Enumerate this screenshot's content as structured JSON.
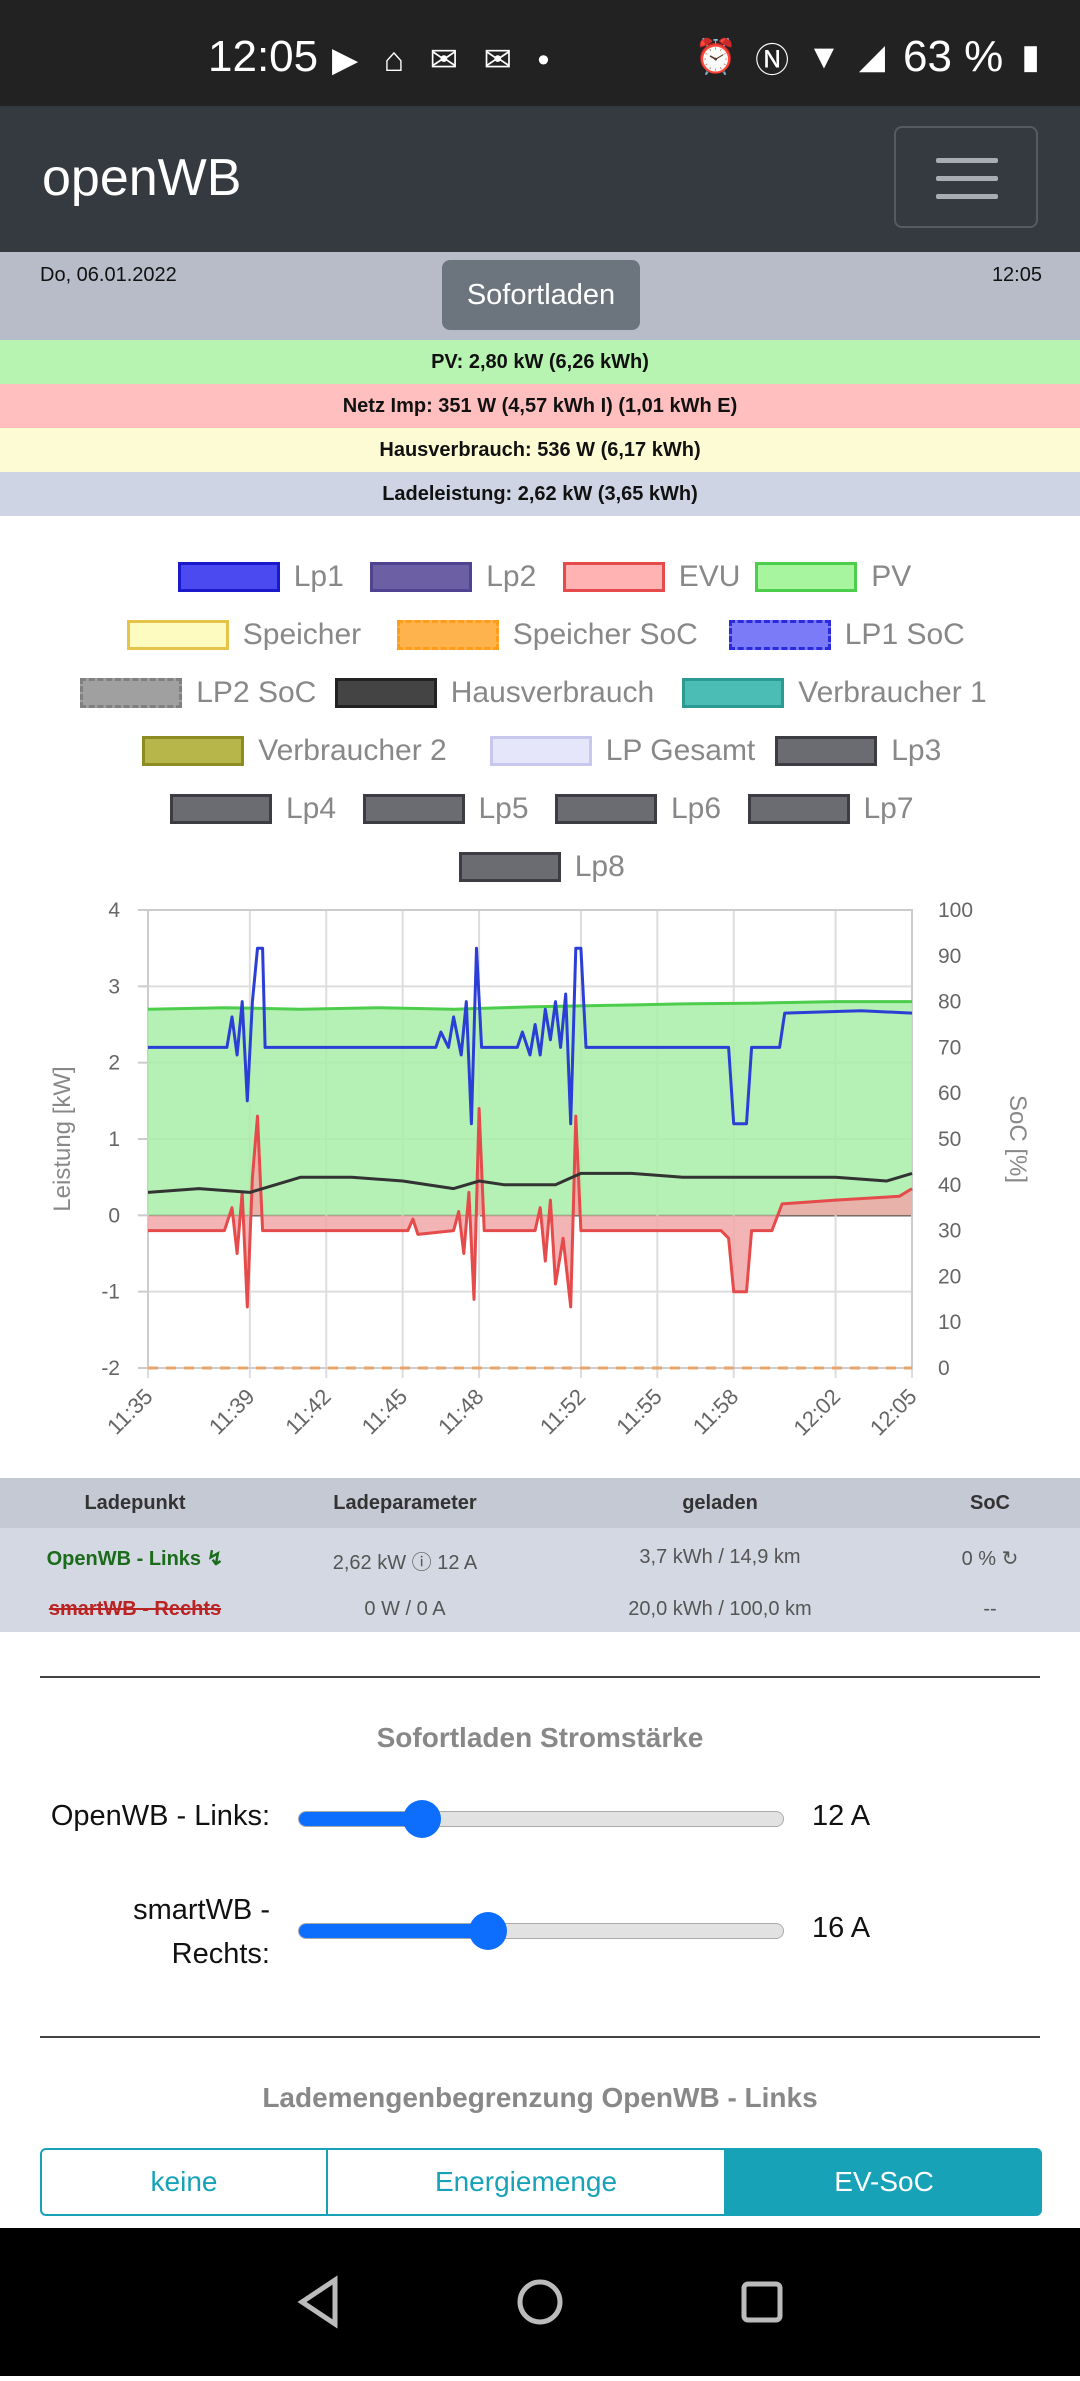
{
  "status_bar": {
    "time": "12:05",
    "left_icons": "▶ ⌂ ✉ ✉ •",
    "battery": "63 %"
  },
  "app": {
    "brand": "openWB"
  },
  "info": {
    "date": "Do, 06.01.2022",
    "mode_button": "Sofortladen",
    "time": "12:05"
  },
  "summary": {
    "pv": "PV: 2,80 kW (6,26 kWh)",
    "grid": "Netz Imp: 351 W (4,57 kWh I) (1,01 kWh E)",
    "house": "Hausverbrauch: 536 W (6,17 kWh)",
    "charge": "Ladeleistung: 2,62 kW (3,65 kWh)"
  },
  "colors": {
    "pv_row": "#b7f4b1",
    "grid_row": "#ffbfbf",
    "house_row": "#fdfbd3",
    "charge_row": "#cfd4e4",
    "accent": "#0d6efd",
    "teal": "#17a2b8"
  },
  "legend": [
    {
      "label": "Lp1",
      "fill": "#4a4af0",
      "border": "#1a1acc",
      "dashed": false
    },
    {
      "label": "Lp2",
      "fill": "#6d5fa3",
      "border": "#4f4392",
      "dashed": false
    },
    {
      "label": "EVU",
      "fill": "#ffb3b3",
      "border": "#e54b4b",
      "dashed": false
    },
    {
      "label": "PV",
      "fill": "#a8f5a0",
      "border": "#4ccd4c",
      "dashed": false
    },
    {
      "label": "Speicher",
      "fill": "#fdfbc0",
      "border": "#e6c44a",
      "dashed": false
    },
    {
      "label": "Speicher SoC",
      "fill": "#ffb34d",
      "border": "#ff9c1a",
      "dashed": true
    },
    {
      "label": "LP1 SoC",
      "fill": "#7b7bf7",
      "border": "#2b2bdd",
      "dashed": true
    },
    {
      "label": "LP2 SoC",
      "fill": "#a0a0a0",
      "border": "#808080",
      "dashed": true
    },
    {
      "label": "Hausverbrauch",
      "fill": "#444444",
      "border": "#222222",
      "dashed": false
    },
    {
      "label": "Verbraucher 1",
      "fill": "#4bbdb5",
      "border": "#2a9a93",
      "dashed": false
    },
    {
      "label": "Verbraucher 2",
      "fill": "#b6b64a",
      "border": "#8c8c22",
      "dashed": false
    },
    {
      "label": "LP Gesamt",
      "fill": "#e6e6fb",
      "border": "#c8c8ef",
      "dashed": false
    },
    {
      "label": "Lp3",
      "fill": "#6b6b72",
      "border": "#3c3c42",
      "dashed": false
    },
    {
      "label": "Lp4",
      "fill": "#6b6b72",
      "border": "#3c3c42",
      "dashed": false
    },
    {
      "label": "Lp5",
      "fill": "#6b6b72",
      "border": "#3c3c42",
      "dashed": false
    },
    {
      "label": "Lp6",
      "fill": "#6b6b72",
      "border": "#3c3c42",
      "dashed": false
    },
    {
      "label": "Lp7",
      "fill": "#6b6b72",
      "border": "#3c3c42",
      "dashed": false
    },
    {
      "label": "Lp8",
      "fill": "#6b6b72",
      "border": "#3c3c42",
      "dashed": false
    }
  ],
  "chart_data": {
    "type": "line",
    "ylabel": "Leistung [kW]",
    "y2label": "SoC [%]",
    "ylim": [
      -2,
      4
    ],
    "y2lim": [
      0,
      100
    ],
    "yticks": [
      -2,
      -1,
      0,
      1,
      2,
      3,
      4
    ],
    "y2ticks": [
      0,
      10,
      20,
      30,
      40,
      50,
      60,
      70,
      80,
      90,
      100
    ],
    "xticks": [
      "11:35",
      "11:39",
      "11:42",
      "11:45",
      "11:48",
      "11:52",
      "11:55",
      "11:58",
      "12:02",
      "12:05"
    ],
    "x_minutes_after_1135": [
      0,
      4,
      7,
      10,
      13,
      17,
      20,
      23,
      27,
      30
    ],
    "series": [
      {
        "name": "PV",
        "color": "#4ccd4c",
        "fill": "#a8eea8",
        "points": [
          [
            0,
            2.7
          ],
          [
            3,
            2.72
          ],
          [
            6,
            2.7
          ],
          [
            9,
            2.72
          ],
          [
            12,
            2.7
          ],
          [
            15,
            2.73
          ],
          [
            18,
            2.75
          ],
          [
            21,
            2.77
          ],
          [
            24,
            2.78
          ],
          [
            27,
            2.8
          ],
          [
            30,
            2.8
          ]
        ]
      },
      {
        "name": "Lp1",
        "color": "#2b3fd6",
        "points": [
          [
            0,
            2.2
          ],
          [
            3.1,
            2.2
          ],
          [
            3.3,
            2.6
          ],
          [
            3.5,
            2.1
          ],
          [
            3.7,
            2.8
          ],
          [
            3.9,
            1.5
          ],
          [
            4.1,
            2.8
          ],
          [
            4.3,
            3.5
          ],
          [
            4.5,
            3.5
          ],
          [
            4.6,
            2.2
          ],
          [
            7,
            2.2
          ],
          [
            10.5,
            2.2
          ],
          [
            11.3,
            2.2
          ],
          [
            11.5,
            2.4
          ],
          [
            11.8,
            2.2
          ],
          [
            12,
            2.6
          ],
          [
            12.3,
            2.1
          ],
          [
            12.5,
            2.8
          ],
          [
            12.7,
            1.2
          ],
          [
            12.9,
            3.5
          ],
          [
            13.1,
            2.2
          ],
          [
            14.5,
            2.2
          ],
          [
            14.7,
            2.4
          ],
          [
            15,
            2.1
          ],
          [
            15.2,
            2.5
          ],
          [
            15.4,
            2.1
          ],
          [
            15.6,
            2.7
          ],
          [
            15.8,
            2.3
          ],
          [
            16,
            2.8
          ],
          [
            16.2,
            2.2
          ],
          [
            16.4,
            2.9
          ],
          [
            16.6,
            1.2
          ],
          [
            16.8,
            3.5
          ],
          [
            17,
            3.5
          ],
          [
            17.2,
            2.2
          ],
          [
            22.8,
            2.2
          ],
          [
            23,
            1.2
          ],
          [
            23.5,
            1.2
          ],
          [
            23.7,
            2.2
          ],
          [
            24.8,
            2.2
          ],
          [
            25,
            2.65
          ],
          [
            27,
            2.67
          ],
          [
            28,
            2.68
          ],
          [
            30,
            2.65
          ]
        ]
      },
      {
        "name": "EVU",
        "color": "#e54b4b",
        "fill": "#f0a7a7",
        "points": [
          [
            0,
            -0.2
          ],
          [
            3,
            -0.2
          ],
          [
            3.3,
            0.1
          ],
          [
            3.5,
            -0.5
          ],
          [
            3.7,
            0.3
          ],
          [
            3.9,
            -1.2
          ],
          [
            4.1,
            0.5
          ],
          [
            4.3,
            1.3
          ],
          [
            4.5,
            -0.2
          ],
          [
            10.2,
            -0.2
          ],
          [
            10.4,
            -0.05
          ],
          [
            10.6,
            -0.25
          ],
          [
            12,
            -0.2
          ],
          [
            12.2,
            0.05
          ],
          [
            12.4,
            -0.5
          ],
          [
            12.6,
            0.3
          ],
          [
            12.8,
            -1.1
          ],
          [
            13,
            1.4
          ],
          [
            13.2,
            -0.2
          ],
          [
            15.2,
            -0.2
          ],
          [
            15.4,
            0.1
          ],
          [
            15.6,
            -0.6
          ],
          [
            15.8,
            0.2
          ],
          [
            16,
            -0.9
          ],
          [
            16.3,
            -0.3
          ],
          [
            16.6,
            -1.2
          ],
          [
            16.8,
            1.3
          ],
          [
            17,
            -0.2
          ],
          [
            22.5,
            -0.2
          ],
          [
            22.8,
            -0.3
          ],
          [
            23,
            -1.0
          ],
          [
            23.5,
            -1.0
          ],
          [
            23.7,
            -0.2
          ],
          [
            24.5,
            -0.2
          ],
          [
            24.9,
            0.15
          ],
          [
            27,
            0.2
          ],
          [
            29.5,
            0.25
          ],
          [
            30,
            0.35
          ]
        ]
      },
      {
        "name": "Hausverbrauch",
        "color": "#333333",
        "points": [
          [
            0,
            0.3
          ],
          [
            2,
            0.35
          ],
          [
            4,
            0.3
          ],
          [
            6,
            0.5
          ],
          [
            8,
            0.5
          ],
          [
            10,
            0.45
          ],
          [
            12,
            0.35
          ],
          [
            13,
            0.45
          ],
          [
            14,
            0.4
          ],
          [
            16,
            0.4
          ],
          [
            17,
            0.55
          ],
          [
            19,
            0.55
          ],
          [
            21,
            0.5
          ],
          [
            23,
            0.5
          ],
          [
            25,
            0.5
          ],
          [
            27,
            0.5
          ],
          [
            29,
            0.45
          ],
          [
            30,
            0.55
          ]
        ]
      }
    ]
  },
  "table": {
    "headers": [
      "Ladepunkt",
      "Ladeparameter",
      "geladen",
      "SoC"
    ],
    "rows": [
      {
        "name": "OpenWB - Links",
        "symbol": "↯",
        "params": "2,62 kW ⓘ 12 A",
        "charged": "3,7 kWh / 14,9 km",
        "soc": "0 %",
        "soc_icon": "↻",
        "name_color": "#1a6b1a",
        "struck": false
      },
      {
        "name": "smartWB - Rechts",
        "symbol": "",
        "params": "0 W / 0 A",
        "charged": "20,0 kWh / 100,0 km",
        "soc": "--",
        "soc_icon": "",
        "name_color": "#b22",
        "struck": true
      }
    ]
  },
  "current_section": {
    "title": "Sofortladen Stromstärke",
    "sliders": [
      {
        "label": "OpenWB - Links:",
        "value_text": "12 A",
        "fraction": 0.255
      },
      {
        "label": "smartWB - Rechts:",
        "value_text": "16 A",
        "fraction": 0.39
      }
    ]
  },
  "limit_section": {
    "title": "Lademengenbegrenzung OpenWB - Links",
    "buttons": [
      {
        "label": "keine",
        "active": false
      },
      {
        "label": "Energiemenge",
        "active": false
      },
      {
        "label": "EV-SoC",
        "active": true
      }
    ]
  },
  "system_nav": {
    "back": "◁",
    "home": "○",
    "recent": "□"
  }
}
